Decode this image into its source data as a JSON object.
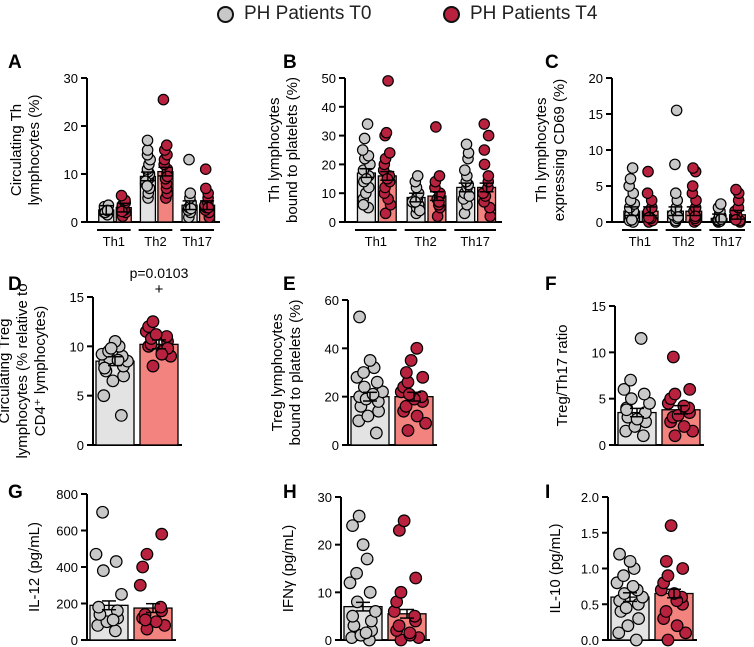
{
  "legend": [
    {
      "label": "PH Patients T0",
      "color": "#c8c8c8"
    },
    {
      "label": "PH Patients T4",
      "color": "#b8223f"
    }
  ],
  "colors": {
    "t0_fill": "#c8c8c8",
    "t0_bar": "#e3e3e3",
    "t4_fill": "#b8223f",
    "t4_bar": "#f2837f",
    "axis": "#000000"
  },
  "chart_data": [
    {
      "type": "bar",
      "panel": "A",
      "ylabel": [
        "Circulating Th",
        "lymphocytes (%)"
      ],
      "ylim": [
        0,
        30
      ],
      "yticks": [
        0,
        10,
        20,
        30
      ],
      "groups": [
        "Th1",
        "Th2",
        "Th17"
      ],
      "series": [
        {
          "name": "PH Patients T0",
          "means": [
            2.5,
            9.5,
            3.5
          ],
          "points": [
            [
              1.5,
              2,
              2.2,
              2.5,
              2.8,
              3,
              3.2,
              3.5,
              2,
              2.4
            ],
            [
              5,
              6,
              7,
              8,
              9,
              9.5,
              10,
              10.5,
              11,
              12,
              13,
              14,
              15,
              17,
              8.5,
              7.5
            ],
            [
              1,
              2,
              2.5,
              3,
              3.5,
              4,
              5,
              6,
              13,
              2.8
            ]
          ]
        },
        {
          "name": "PH Patients T4",
          "means": [
            3,
            10.5,
            3.5
          ],
          "points": [
            [
              1.2,
              2,
              2.5,
              3,
              3.5,
              4,
              4.5,
              5.5,
              2.2
            ],
            [
              5,
              6,
              7,
              8,
              9,
              10,
              11,
              12,
              13,
              14,
              15,
              16,
              25.5,
              9.5
            ],
            [
              1,
              2,
              2.5,
              3,
              3.5,
              4,
              5,
              6,
              7,
              11,
              3
            ]
          ]
        }
      ]
    },
    {
      "type": "bar",
      "panel": "B",
      "ylabel": [
        "Th lymphocytes",
        "bound to platelets (%)"
      ],
      "ylim": [
        0,
        50
      ],
      "yticks": [
        0,
        10,
        20,
        30,
        40,
        50
      ],
      "groups": [
        "Th1",
        "Th2",
        "Th17"
      ],
      "series": [
        {
          "name": "PH Patients T0",
          "means": [
            17,
            8.5,
            12
          ],
          "points": [
            [
              5,
              8,
              10,
              12,
              14,
              16,
              18,
              20,
              22,
              23,
              25,
              29,
              34,
              15,
              6
            ],
            [
              3,
              5,
              6,
              7,
              8,
              9,
              10,
              12,
              14,
              16,
              4,
              7
            ],
            [
              3,
              6,
              8,
              10,
              12,
              13,
              14,
              16,
              18,
              22,
              24,
              27,
              9
            ]
          ]
        },
        {
          "name": "PH Patients T4",
          "means": [
            16,
            9,
            12
          ],
          "points": [
            [
              3,
              6,
              8,
              10,
              12,
              14,
              16,
              18,
              20,
              22,
              24,
              30,
              31,
              49,
              15
            ],
            [
              2,
              5,
              6,
              7,
              8,
              9,
              10,
              12,
              14,
              16,
              33,
              7
            ],
            [
              2,
              5,
              7,
              9,
              10,
              12,
              14,
              16,
              20,
              25,
              30,
              34
            ]
          ]
        }
      ]
    },
    {
      "type": "bar",
      "panel": "C",
      "ylabel": [
        "Th lymphocytes",
        "expressing CD69 (%)"
      ],
      "ylim": [
        0,
        20
      ],
      "yticks": [
        0,
        5,
        10,
        15,
        20
      ],
      "groups": [
        "Th1",
        "Th2",
        "Th17"
      ],
      "series": [
        {
          "name": "PH Patients T0",
          "means": [
            1.5,
            1.5,
            0.5
          ],
          "points": [
            [
              0,
              0.2,
              0.5,
              0.8,
              1,
              1.5,
              2,
              2.5,
              3,
              4,
              5,
              6,
              7.5,
              0.3
            ],
            [
              0,
              0.2,
              0.5,
              1,
              1.5,
              2,
              3,
              4,
              8,
              15.5,
              0.7
            ],
            [
              0,
              0.1,
              0.2,
              0.3,
              0.5,
              0.8,
              1,
              1.5,
              2,
              2.5,
              0.4
            ]
          ]
        },
        {
          "name": "PH Patients T4",
          "means": [
            1.5,
            1.5,
            1
          ],
          "points": [
            [
              0,
              0.2,
              0.5,
              1,
              1.5,
              2,
              3,
              4,
              7,
              0.6
            ],
            [
              0,
              0.2,
              0.5,
              1,
              1.5,
              2,
              3,
              4,
              5,
              7,
              7.5,
              0.8
            ],
            [
              0,
              0.2,
              0.5,
              1,
              1.5,
              2,
              3,
              4,
              4.5,
              0.3
            ]
          ]
        }
      ]
    },
    {
      "type": "bar",
      "panel": "D",
      "ylabel": [
        "Circulating Treg",
        "lymphocytes (% relative to",
        "CD4⁺ lymphocytes)"
      ],
      "ylim": [
        0,
        15
      ],
      "yticks": [
        0,
        5,
        10,
        15
      ],
      "categories": [
        "PH Patients T0",
        "PH Patients T4"
      ],
      "annotation": [
        "p=0.0103",
        "+"
      ],
      "series": [
        {
          "name": "PH Patients T0",
          "means": [
            8.5
          ],
          "points": [
            [
              3,
              5,
              6.5,
              7,
              7.5,
              8,
              8.3,
              8.5,
              8.8,
              9,
              9.2,
              9.5,
              10,
              10.5,
              7.8,
              9.8,
              8.6
            ]
          ]
        },
        {
          "name": "PH Patients T4",
          "means": [
            10.2
          ],
          "points": [
            [
              8,
              9,
              9.5,
              10,
              10.2,
              10.5,
              11,
              11.5,
              12,
              12.5,
              9.8,
              10.8,
              11.2,
              9.2
            ]
          ]
        }
      ]
    },
    {
      "type": "bar",
      "panel": "E",
      "ylabel": [
        "Treg lymphocytes",
        "bound to platelets (%)"
      ],
      "ylim": [
        0,
        60
      ],
      "yticks": [
        0,
        20,
        40,
        60
      ],
      "categories": [
        "PH Patients T0",
        "PH Patients T4"
      ],
      "series": [
        {
          "name": "PH Patients T0",
          "means": [
            20
          ],
          "points": [
            [
              5,
              10,
              12,
              14,
              16,
              18,
              20,
              22,
              24,
              26,
              28,
              30,
              32,
              35,
              53,
              19,
              21
            ]
          ]
        },
        {
          "name": "PH Patients T4",
          "means": [
            20
          ],
          "points": [
            [
              6,
              9,
              12,
              14,
              16,
              18,
              20,
              22,
              24,
              26,
              28,
              30,
              35,
              40,
              19,
              21
            ]
          ]
        }
      ]
    },
    {
      "type": "bar",
      "panel": "F",
      "ylabel": [
        "Treg/Th17 ratio"
      ],
      "ylim": [
        0,
        15
      ],
      "yticks": [
        0,
        5,
        10,
        15
      ],
      "categories": [
        "PH Patients T0",
        "PH Patients T4"
      ],
      "series": [
        {
          "name": "PH Patients T0",
          "means": [
            3.5
          ],
          "points": [
            [
              1,
              1.5,
              2,
              2.5,
              3,
              3.5,
              4,
              4.5,
              5,
              5.5,
              6,
              7,
              11.5,
              2.8,
              3.8
            ]
          ]
        },
        {
          "name": "PH Patients T4",
          "means": [
            3.8
          ],
          "points": [
            [
              1,
              1.5,
              2,
              2.5,
              3,
              3.5,
              4,
              4.5,
              5,
              5.5,
              6,
              9.5,
              3.2,
              4.2
            ]
          ]
        }
      ]
    },
    {
      "type": "bar",
      "panel": "G",
      "ylabel": [
        "IL-12 (pg/mL)"
      ],
      "ylim": [
        0,
        800
      ],
      "yticks": [
        0,
        200,
        400,
        600,
        800
      ],
      "categories": [
        "PH Patients T0",
        "PH Patients T4"
      ],
      "series": [
        {
          "name": "PH Patients T0",
          "means": [
            190
          ],
          "points": [
            [
              50,
              80,
              100,
              120,
              140,
              160,
              180,
              250,
              380,
              430,
              470,
              700,
              110
            ]
          ]
        },
        {
          "name": "PH Patients T4",
          "means": [
            175
          ],
          "points": [
            [
              60,
              80,
              100,
              120,
              140,
              160,
              180,
              300,
              400,
              470,
              580,
              110
            ]
          ]
        }
      ]
    },
    {
      "type": "bar",
      "panel": "H",
      "ylabel": [
        "IFNγ (pg/mL)"
      ],
      "ylim": [
        0,
        30
      ],
      "yticks": [
        0,
        10,
        20,
        30
      ],
      "categories": [
        "PH Patients T0",
        "PH Patients T4"
      ],
      "series": [
        {
          "name": "PH Patients T0",
          "means": [
            7
          ],
          "points": [
            [
              0,
              0.5,
              1,
              2,
              3,
              4,
              5,
              6,
              8,
              10,
              12,
              14,
              17,
              20,
              24,
              26,
              1.5
            ]
          ]
        },
        {
          "name": "PH Patients T4",
          "means": [
            5.5
          ],
          "points": [
            [
              0,
              0.5,
              1,
              2,
              3,
              4,
              5,
              6,
              8,
              10,
              13,
              23,
              25,
              1.5
            ]
          ]
        }
      ]
    },
    {
      "type": "bar",
      "panel": "I",
      "ylabel": [
        "IL-10 (pg/mL)"
      ],
      "ylim": [
        0,
        2.0
      ],
      "yticks": [
        "0.0",
        "0.5",
        "1.0",
        "1.5",
        "2.0"
      ],
      "categories": [
        "PH Patients T0",
        "PH Patients T4"
      ],
      "series": [
        {
          "name": "PH Patients T0",
          "means": [
            0.6
          ],
          "points": [
            [
              0,
              0.1,
              0.2,
              0.3,
              0.4,
              0.5,
              0.55,
              0.6,
              0.65,
              0.7,
              0.8,
              0.9,
              1.0,
              1.1,
              1.2,
              0.45,
              0.75
            ]
          ]
        },
        {
          "name": "PH Patients T4",
          "means": [
            0.65
          ],
          "points": [
            [
              0,
              0.1,
              0.2,
              0.3,
              0.4,
              0.5,
              0.6,
              0.7,
              0.8,
              0.9,
              1.0,
              1.1,
              1.6,
              0.55,
              0.65
            ]
          ]
        }
      ]
    }
  ]
}
